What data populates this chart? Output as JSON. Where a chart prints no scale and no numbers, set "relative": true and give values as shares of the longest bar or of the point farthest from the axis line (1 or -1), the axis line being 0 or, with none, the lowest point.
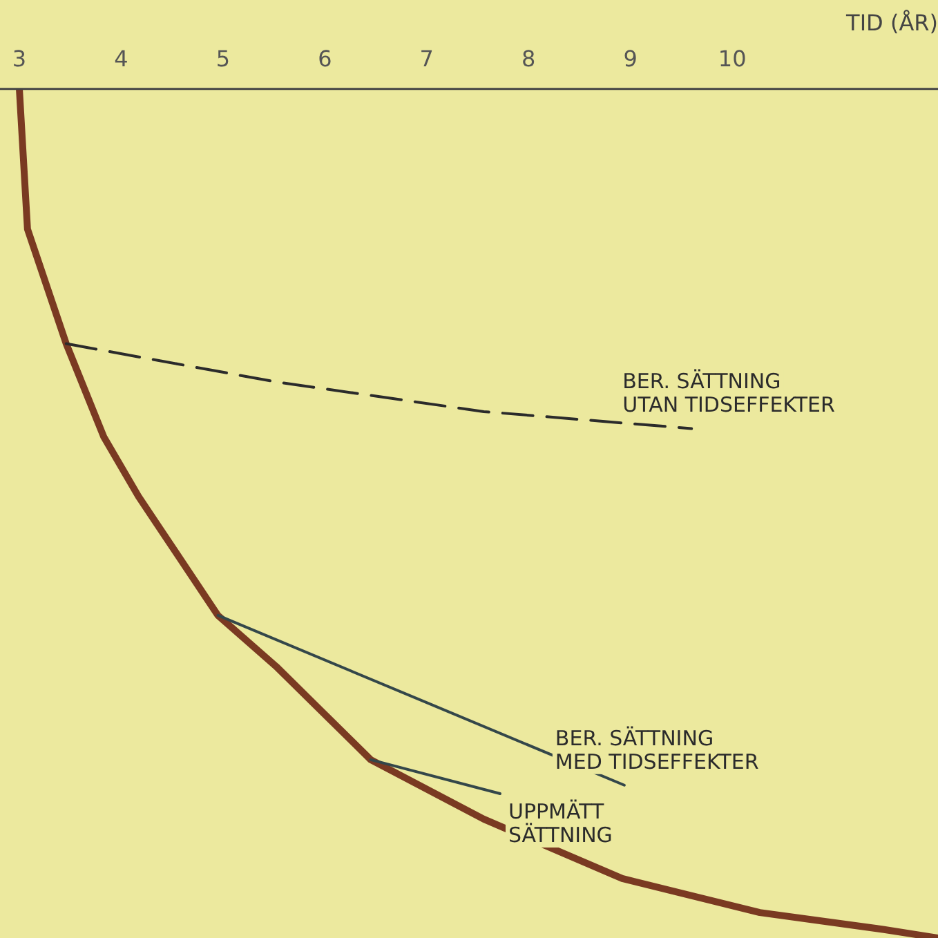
{
  "chart_data": {
    "type": "line",
    "relative": true,
    "xlabel": "TID (ÅR)",
    "xlim": [
      2.81,
      12.02
    ],
    "xticks": [
      3,
      4,
      5,
      6,
      7,
      8,
      9,
      10
    ],
    "grid": false,
    "legend": false,
    "marker": "none",
    "series": [
      {
        "color": "#7a3a22",
        "x": [
          3.0,
          3.08,
          3.46,
          3.83,
          4.17,
          4.95,
          5.52,
          6.45,
          7.56,
          8.92,
          10.27,
          11.49,
          12.02
        ],
        "values": [
          0,
          -0.165,
          -0.3,
          -0.41,
          -0.48,
          -0.62,
          -0.68,
          -0.79,
          -0.86,
          -0.93,
          -0.97,
          -0.99,
          -1
        ]
      },
      {
        "name": "BER. SÄTTNING\nUTAN TIDSEFFEKTER",
        "color": "#2b2b2b",
        "line_style": "dashed",
        "x": [
          3.46,
          5.52,
          7.56,
          9.6
        ],
        "values": [
          -0.3,
          -0.345,
          -0.38,
          -0.4
        ]
      },
      {
        "name": "BER. SÄTTNING\nMED TIDSEFFEKTER",
        "color": "#34474a",
        "x": [
          4.95,
          8.94
        ],
        "values": [
          -0.62,
          -0.82
        ]
      },
      {
        "name": "UPPMÄTT\nSÄTTNING",
        "color": "#34474a",
        "x": [
          6.45,
          7.72
        ],
        "values": [
          -0.79,
          -0.83
        ]
      }
    ]
  }
}
